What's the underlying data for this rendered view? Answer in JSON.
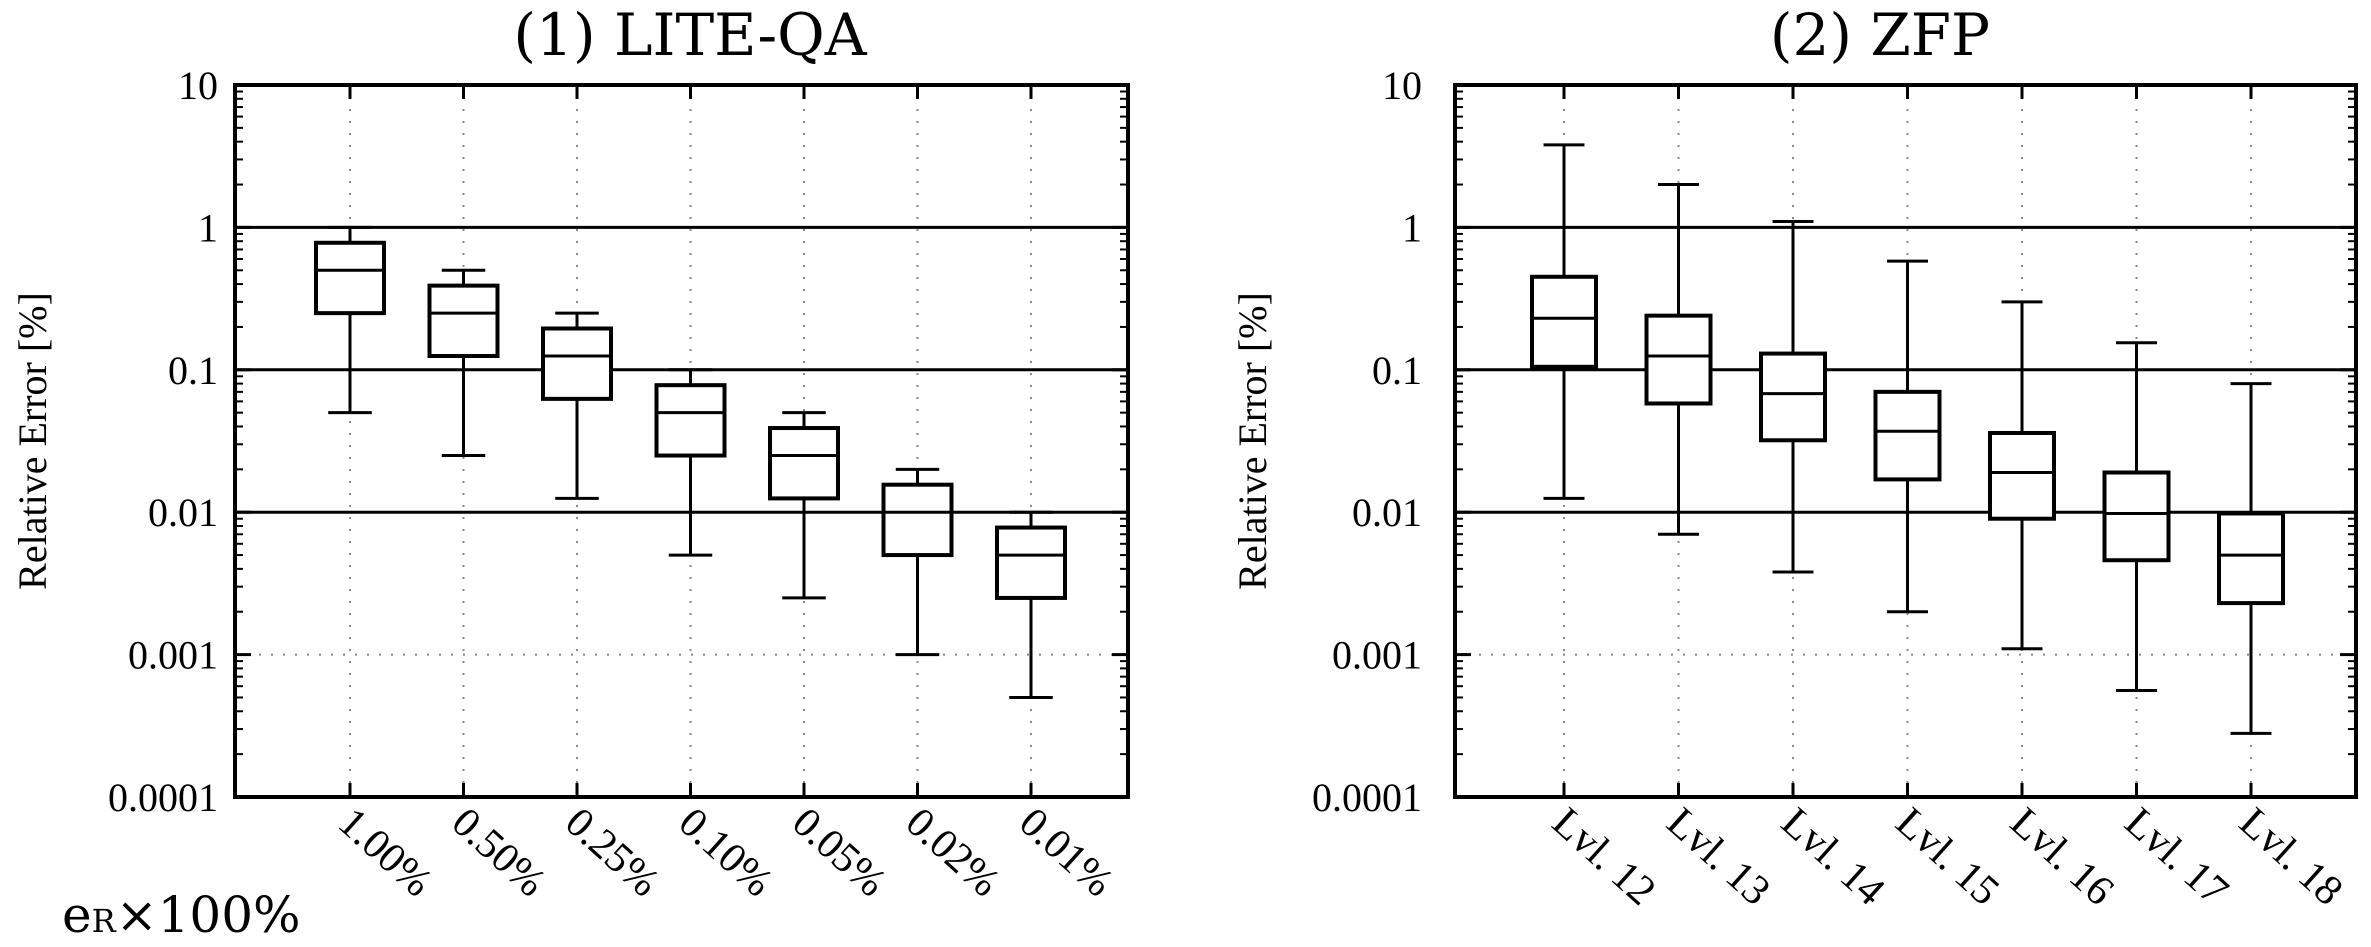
{
  "note": {
    "main": "e",
    "sub": "R",
    "rest": "×100%"
  },
  "chart_data": [
    {
      "type": "box",
      "title": "(1) LITE-QA",
      "xlabel": "",
      "ylabel": "Relative Error [%]",
      "yscale": "log",
      "ylim": [
        0.0001,
        10
      ],
      "yticks": [
        0.0001,
        0.001,
        0.01,
        0.1,
        1,
        10
      ],
      "ytick_labels": [
        "0.0001",
        "0.001",
        "0.01",
        "0.1",
        "1",
        "10"
      ],
      "reference_lines": [
        1,
        0.1,
        0.01
      ],
      "grid": "dotted",
      "categories": [
        "1.00%",
        "0.50%",
        "0.25%",
        "0.10%",
        "0.05%",
        "0.02%",
        "0.01%"
      ],
      "boxes": [
        {
          "whisker_low": 0.05,
          "q1": 0.25,
          "median": 0.5,
          "q3": 0.78,
          "whisker_high": 1.0
        },
        {
          "whisker_low": 0.025,
          "q1": 0.125,
          "median": 0.25,
          "q3": 0.39,
          "whisker_high": 0.5
        },
        {
          "whisker_low": 0.0125,
          "q1": 0.0625,
          "median": 0.125,
          "q3": 0.195,
          "whisker_high": 0.25
        },
        {
          "whisker_low": 0.005,
          "q1": 0.025,
          "median": 0.05,
          "q3": 0.078,
          "whisker_high": 0.1
        },
        {
          "whisker_low": 0.0025,
          "q1": 0.0125,
          "median": 0.025,
          "q3": 0.039,
          "whisker_high": 0.05
        },
        {
          "whisker_low": 0.001,
          "q1": 0.005,
          "median": 0.01,
          "q3": 0.0156,
          "whisker_high": 0.02
        },
        {
          "whisker_low": 0.0005,
          "q1": 0.0025,
          "median": 0.005,
          "q3": 0.0078,
          "whisker_high": 0.01
        }
      ]
    },
    {
      "type": "box",
      "title": "(2) ZFP",
      "xlabel": "",
      "ylabel": "Relative Error [%]",
      "yscale": "log",
      "ylim": [
        0.0001,
        10
      ],
      "yticks": [
        0.0001,
        0.001,
        0.01,
        0.1,
        1,
        10
      ],
      "ytick_labels": [
        "0.0001",
        "0.001",
        "0.01",
        "0.1",
        "1",
        "10"
      ],
      "reference_lines": [
        1,
        0.1,
        0.01
      ],
      "grid": "dotted",
      "categories": [
        "Lvl. 12",
        "Lvl. 13",
        "Lvl. 14",
        "Lvl. 15",
        "Lvl. 16",
        "Lvl. 17",
        "Lvl. 18"
      ],
      "boxes": [
        {
          "whisker_low": 0.0125,
          "q1": 0.105,
          "median": 0.23,
          "q3": 0.45,
          "whisker_high": 3.8
        },
        {
          "whisker_low": 0.007,
          "q1": 0.058,
          "median": 0.125,
          "q3": 0.24,
          "whisker_high": 2.0
        },
        {
          "whisker_low": 0.0038,
          "q1": 0.032,
          "median": 0.068,
          "q3": 0.13,
          "whisker_high": 1.1
        },
        {
          "whisker_low": 0.002,
          "q1": 0.017,
          "median": 0.037,
          "q3": 0.07,
          "whisker_high": 0.58
        },
        {
          "whisker_low": 0.0011,
          "q1": 0.009,
          "median": 0.019,
          "q3": 0.036,
          "whisker_high": 0.3
        },
        {
          "whisker_low": 0.00056,
          "q1": 0.0046,
          "median": 0.0098,
          "q3": 0.019,
          "whisker_high": 0.155
        },
        {
          "whisker_low": 0.00028,
          "q1": 0.0023,
          "median": 0.005,
          "q3": 0.0098,
          "whisker_high": 0.08
        }
      ]
    }
  ]
}
